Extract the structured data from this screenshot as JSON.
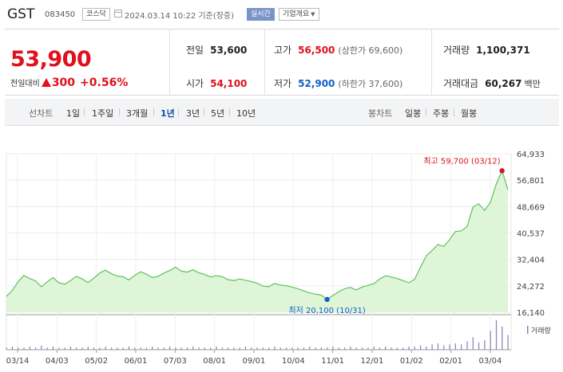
{
  "header": {
    "name": "GST",
    "code": "083450",
    "market": "코스닥",
    "datetime": "2024.03.14 10:22 기준(장중)",
    "realtime": "실시간",
    "company": "기업개요"
  },
  "price": {
    "current": "53,900",
    "change_label": "전일대비",
    "change": "300",
    "change_pct": "+0.56%",
    "direction": "up"
  },
  "stats": {
    "prev_close": {
      "label": "전일",
      "value": "53,600"
    },
    "high": {
      "label": "고가",
      "value": "56,500",
      "sub": "(상한가 69,600)"
    },
    "volume": {
      "label": "거래량",
      "value": "1,100,371"
    },
    "open": {
      "label": "시가",
      "value": "54,100"
    },
    "low": {
      "label": "저가",
      "value": "52,900",
      "sub": "(하한가 37,600)"
    },
    "trade_value": {
      "label": "거래대금",
      "value": "60,267",
      "unit": "백만"
    }
  },
  "tabs": {
    "line_label": "선차트",
    "periods": [
      "1일",
      "1주일",
      "3개월",
      "1년",
      "3년",
      "5년",
      "10년"
    ],
    "active_period": "1년",
    "candle_label": "봉차트",
    "candles": [
      "일봉",
      "주봉",
      "월봉"
    ]
  },
  "colors": {
    "up": "#e0101d",
    "down": "#1060c8",
    "line": "#5cc25c",
    "fill": "#dff5d8",
    "volume_bar": "#8a7fb8"
  },
  "chart_data": {
    "type": "area",
    "y_ticks": [
      "64,933",
      "56,801",
      "48,669",
      "40,537",
      "32,404",
      "24,272",
      "16,140"
    ],
    "ylim": [
      16140,
      64933
    ],
    "x_labels": [
      "03/14",
      "04/03",
      "05/02",
      "06/01",
      "07/03",
      "08/01",
      "09/01",
      "10/04",
      "11/01",
      "12/01",
      "01/02",
      "02/01",
      "03/04"
    ],
    "grid": true,
    "series": [
      {
        "values": [
          21000,
          22800,
          25500,
          27500,
          26500,
          25800,
          24000,
          25500,
          26800,
          25200,
          24800,
          25900,
          27200,
          26400,
          25300,
          26600,
          28200,
          29100,
          28000,
          27300,
          27100,
          26100,
          27500,
          28600,
          27900,
          26800,
          27200,
          28200,
          29000,
          30000,
          28800,
          28500,
          29200,
          28300,
          27800,
          27000,
          27400,
          27100,
          26200,
          25900,
          26400,
          26000,
          25600,
          25100,
          24200,
          24000,
          25000,
          24500,
          24300,
          23900,
          23400,
          22700,
          22100,
          21700,
          21400,
          20100,
          21300,
          22500,
          23400,
          23800,
          23000,
          23900,
          24400,
          24900,
          26400,
          27400,
          27000,
          26500,
          25900,
          25200,
          26300,
          30000,
          33500,
          35200,
          37000,
          36400,
          38500,
          41000,
          41200,
          42500,
          48500,
          49500,
          47500,
          50000,
          55600,
          59700,
          53900
        ]
      }
    ],
    "volume": [
      2,
      3,
      2,
      2,
      3,
      2,
      4,
      2,
      3,
      2,
      2,
      3,
      2,
      2,
      3,
      2,
      2,
      3,
      2,
      2,
      2,
      3,
      2,
      2,
      2,
      3,
      2,
      2,
      3,
      2,
      2,
      2,
      3,
      2,
      2,
      2,
      3,
      2,
      2,
      2,
      2,
      3,
      2,
      2,
      2,
      2,
      3,
      2,
      2,
      2,
      2,
      2,
      3,
      2,
      2,
      2,
      3,
      2,
      2,
      3,
      2,
      2,
      2,
      3,
      2,
      3,
      2,
      2,
      2,
      3,
      3,
      4,
      3,
      5,
      6,
      4,
      5,
      6,
      5,
      8,
      12,
      7,
      9,
      18,
      28,
      22,
      14
    ],
    "high_annotation": "최고 59,700 (03/12)",
    "low_annotation": "최저 20,100 (10/31)",
    "volume_label": "거래량"
  }
}
